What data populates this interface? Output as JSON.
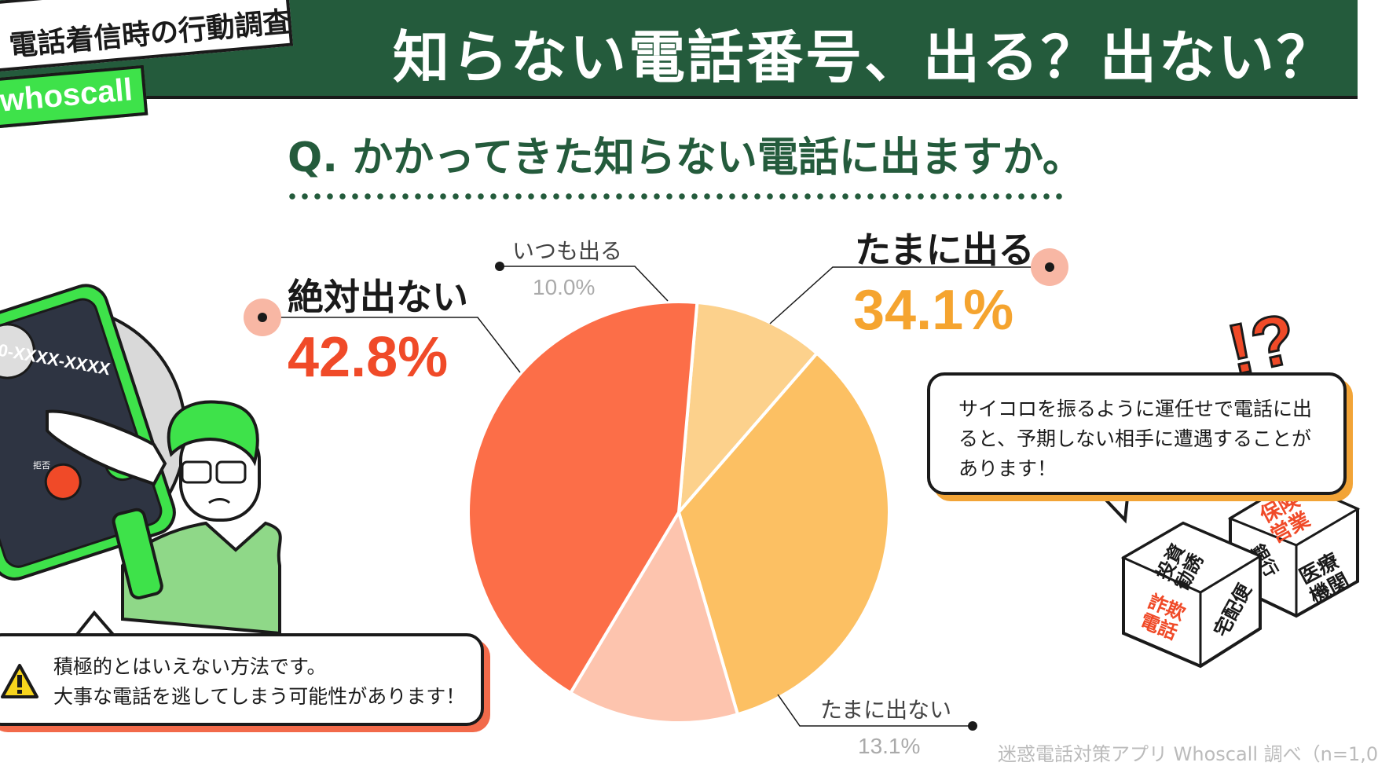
{
  "header": {
    "title": "知らない電話番号、出る？出ない？",
    "badge_text": "電話着信時の行動調査",
    "brand": "whoscall"
  },
  "question": "Q. かかってきた知らない電話に出ますか。",
  "chart_data": {
    "type": "pie",
    "title": "Q. かかってきた知らない電話に出ますか。",
    "categories": [
      "いつも出る",
      "たまに出る",
      "たまに出ない",
      "絶対出ない"
    ],
    "values": [
      10.0,
      34.1,
      13.1,
      42.8
    ],
    "value_labels": [
      "10.0%",
      "34.1%",
      "13.1%",
      "42.8%"
    ],
    "colors": [
      "#fcd18c",
      "#fcc063",
      "#fdc4ae",
      "#fc6e48"
    ],
    "start_angle_deg": 0,
    "direction": "clockwise"
  },
  "bubbles": {
    "right": "サイコロを振るように運任せで電話に出ると、予期しない相手に遭遇することがあります！",
    "left_line1": "積極的とはいえない方法です。",
    "left_line2": "大事な電話を逃してしまう可能性があります！"
  },
  "phone": {
    "number": "0-XXXX-XXXX",
    "decline": "拒否"
  },
  "dice": {
    "left_top": "投資\n勧誘",
    "left_front": "詐欺\n電話",
    "left_side": "宅配便",
    "right_top": "保険\n営業",
    "right_front": "医療\n機関",
    "right_side": "銀行"
  },
  "exclamation": "!?",
  "source": "迷惑電話対策アプリ Whoscall 調べ（n=1,0"
}
